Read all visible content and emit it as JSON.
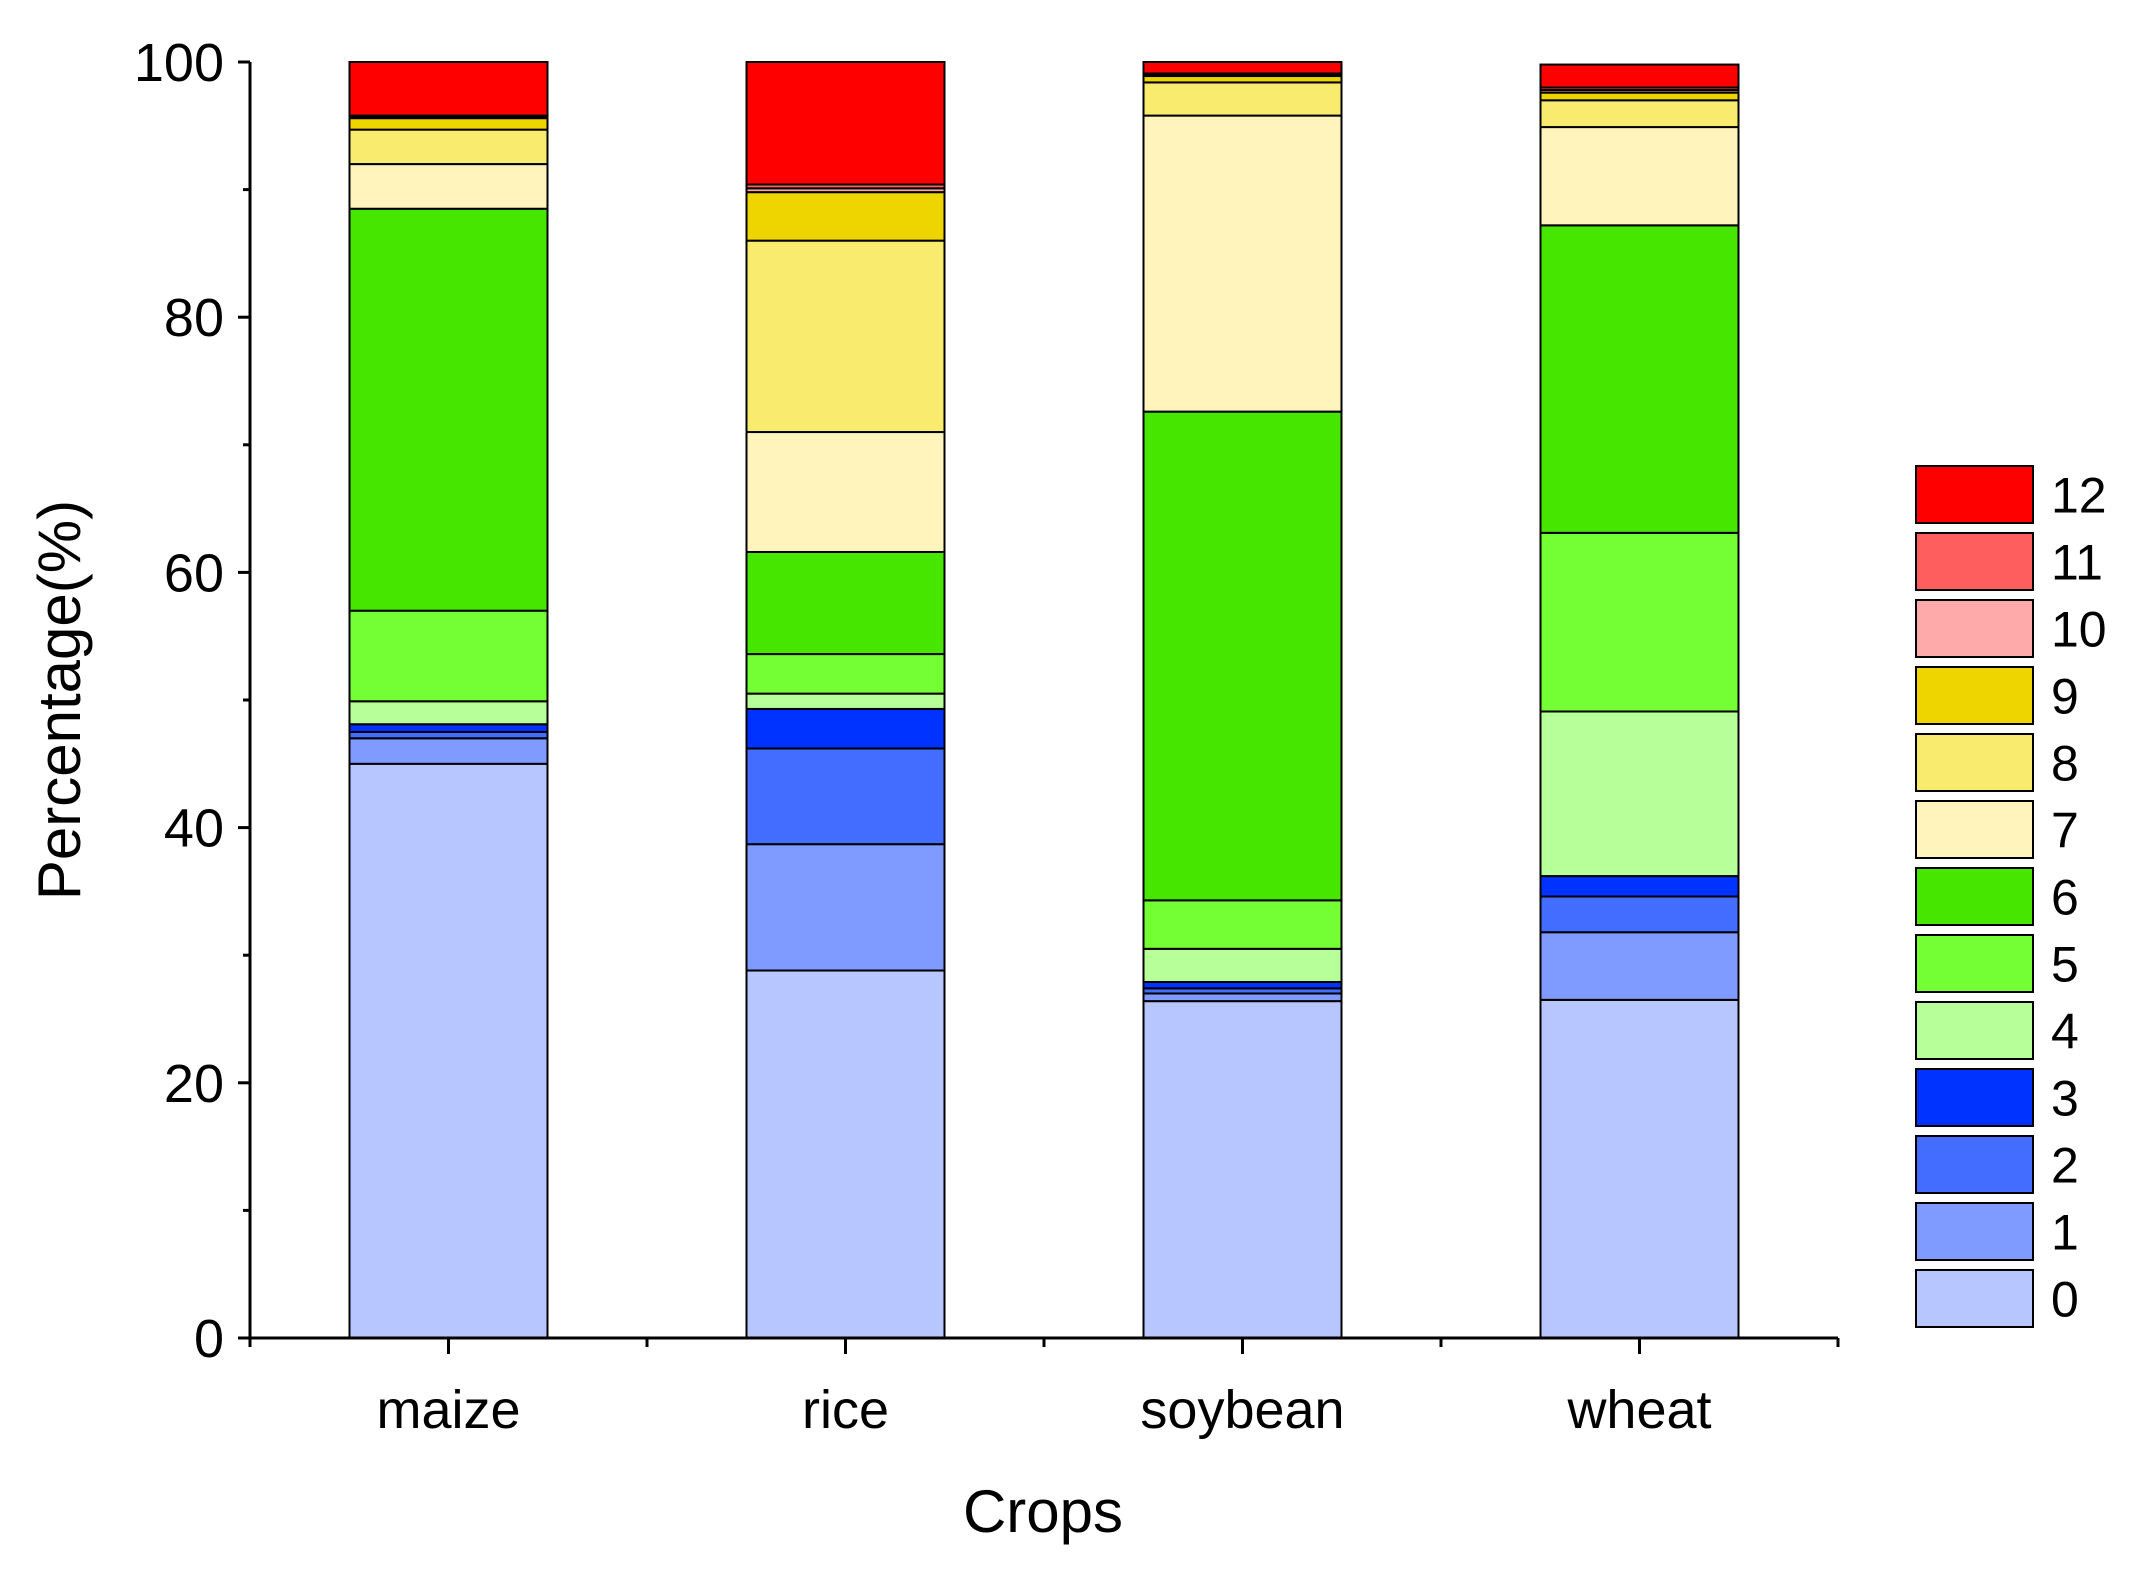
{
  "chart_data": {
    "type": "bar",
    "stacked": true,
    "title": "",
    "xlabel": "Crops",
    "ylabel": "Percentage(%)",
    "ylim": [
      0,
      100
    ],
    "yticks": [
      "0",
      "20",
      "40",
      "60",
      "80",
      "100"
    ],
    "ytick_values": [
      0,
      20,
      40,
      60,
      80,
      100
    ],
    "categories": [
      "maize",
      "rice",
      "soybean",
      "wheat"
    ],
    "legend_position": "right",
    "series": [
      {
        "name": "0",
        "color": "#B8C6FF",
        "values": [
          45.0,
          28.8,
          26.4,
          26.5
        ]
      },
      {
        "name": "1",
        "color": "#7F9BFF",
        "values": [
          2.0,
          9.9,
          0.6,
          5.3
        ]
      },
      {
        "name": "2",
        "color": "#426DFF",
        "values": [
          0.5,
          7.5,
          0.4,
          2.8
        ]
      },
      {
        "name": "3",
        "color": "#0033FF",
        "values": [
          0.6,
          3.1,
          0.5,
          1.6
        ]
      },
      {
        "name": "4",
        "color": "#B7FF99",
        "values": [
          1.8,
          1.2,
          2.6,
          12.9
        ]
      },
      {
        "name": "5",
        "color": "#73FF33",
        "values": [
          7.1,
          3.1,
          3.8,
          14.0
        ]
      },
      {
        "name": "6",
        "color": "#47E600",
        "values": [
          31.5,
          8.0,
          38.3,
          24.1
        ]
      },
      {
        "name": "7",
        "color": "#FFF5BC",
        "values": [
          3.5,
          9.4,
          23.2,
          7.7
        ]
      },
      {
        "name": "8",
        "color": "#F9EB6E",
        "values": [
          2.7,
          15.0,
          2.6,
          2.1
        ]
      },
      {
        "name": "9",
        "color": "#EFD500",
        "values": [
          0.9,
          3.8,
          0.5,
          0.6
        ]
      },
      {
        "name": "10",
        "color": "#FFAAAA",
        "values": [
          0.1,
          0.3,
          0.1,
          0.2
        ]
      },
      {
        "name": "11",
        "color": "#FF5E5E",
        "values": [
          0.1,
          0.3,
          0.1,
          0.2
        ]
      },
      {
        "name": "12",
        "color": "#FF0000",
        "values": [
          4.2,
          9.6,
          0.9,
          1.8
        ]
      }
    ]
  }
}
